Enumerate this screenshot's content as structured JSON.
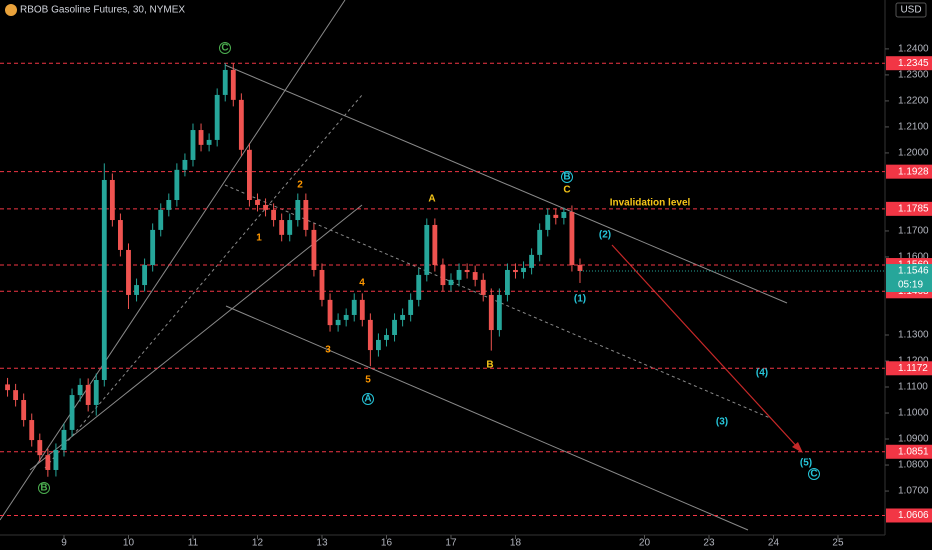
{
  "chart_data": {
    "type": "candlestick",
    "title": "RBOB Gasoline Futures, 30, NYMEX",
    "currency": "USD",
    "up_color": "#26a69a",
    "down_color": "#ef5350",
    "level_color": "#f23645",
    "grid": false,
    "xlim": [
      -0.992,
      12.729
    ],
    "xticks": [
      {
        "value": 0,
        "label": "9"
      },
      {
        "value": 1,
        "label": "10"
      },
      {
        "value": 2,
        "label": "11"
      },
      {
        "value": 3,
        "label": "12"
      },
      {
        "value": 4,
        "label": "13"
      },
      {
        "value": 5,
        "label": "16"
      },
      {
        "value": 6,
        "label": "17"
      },
      {
        "value": 7,
        "label": "18"
      },
      {
        "value": 9,
        "label": "20"
      },
      {
        "value": 10,
        "label": "23"
      },
      {
        "value": 11,
        "label": "24"
      },
      {
        "value": 12,
        "label": "25"
      }
    ],
    "ylim": [
      1.0531,
      1.2588
    ],
    "yticks": [
      {
        "value": 1.24,
        "label": "1.2400"
      },
      {
        "value": 1.23,
        "label": "1.2300"
      },
      {
        "value": 1.22,
        "label": "1.2200"
      },
      {
        "value": 1.21,
        "label": "1.2100"
      },
      {
        "value": 1.2,
        "label": "1.2000"
      },
      {
        "value": 1.17,
        "label": "1.1700"
      },
      {
        "value": 1.16,
        "label": "1.1600"
      },
      {
        "value": 1.13,
        "label": "1.1300"
      },
      {
        "value": 1.12,
        "label": "1.1200"
      },
      {
        "value": 1.11,
        "label": "1.1100"
      },
      {
        "value": 1.1,
        "label": "1.1000"
      },
      {
        "value": 1.09,
        "label": "1.0900"
      },
      {
        "value": 1.08,
        "label": "1.0800"
      },
      {
        "value": 1.07,
        "label": "1.0700"
      }
    ],
    "x": [
      -0.875,
      -0.75,
      -0.625,
      -0.5,
      -0.375,
      -0.25,
      -0.125,
      0,
      0.125,
      0.25,
      0.375,
      0.5,
      0.625,
      0.75,
      0.875,
      1,
      1.125,
      1.25,
      1.375,
      1.5,
      1.625,
      1.75,
      1.875,
      2,
      2.125,
      2.25,
      2.375,
      2.5,
      2.625,
      2.75,
      2.875,
      3,
      3.125,
      3.25,
      3.375,
      3.5,
      3.625,
      3.75,
      3.875,
      4,
      4.125,
      4.25,
      4.375,
      4.5,
      4.625,
      4.75,
      4.875,
      5,
      5.125,
      5.25,
      5.375,
      5.5,
      5.625,
      5.75,
      5.875,
      6,
      6.125,
      6.25,
      6.375,
      6.5,
      6.625,
      6.75,
      6.875,
      7,
      7.125,
      7.25,
      7.375,
      7.5,
      7.625,
      7.75,
      7.875,
      8
    ],
    "open": [
      1.111,
      1.1088,
      1.105,
      1.0973,
      1.0896,
      1.0838,
      1.0781,
      1.0858,
      1.0935,
      1.1069,
      1.1108,
      1.1031,
      1.1127,
      1.1896,
      1.1742,
      1.1627,
      1.1454,
      1.1492,
      1.1569,
      1.1704,
      1.1781,
      1.1819,
      1.1935,
      1.1973,
      1.2088,
      1.2031,
      1.205,
      1.2223,
      1.2319,
      1.2204,
      1.2012,
      1.1819,
      1.18,
      1.1781,
      1.1742,
      1.1685,
      1.1742,
      1.1819,
      1.1704,
      1.155,
      1.1435,
      1.1338,
      1.1358,
      1.1377,
      1.1435,
      1.1358,
      1.1242,
      1.1281,
      1.13,
      1.1358,
      1.1377,
      1.1435,
      1.1531,
      1.1723,
      1.1569,
      1.1492,
      1.1512,
      1.155,
      1.1542,
      1.1512,
      1.1454,
      1.1319,
      1.1454,
      1.155,
      1.1542,
      1.1558,
      1.1608,
      1.1704,
      1.1762,
      1.175,
      1.1773,
      1.1569
    ],
    "high": [
      1.1135,
      1.1112,
      1.1075,
      1.0998,
      1.0921,
      1.0863,
      1.0883,
      1.096,
      1.1094,
      1.1133,
      1.1133,
      1.1152,
      1.196,
      1.1921,
      1.1767,
      1.1652,
      1.1517,
      1.1594,
      1.1729,
      1.1806,
      1.1844,
      1.196,
      1.1998,
      1.2113,
      1.2113,
      1.2075,
      1.2248,
      1.2345,
      1.2344,
      1.2229,
      1.2037,
      1.1844,
      1.1825,
      1.1806,
      1.1767,
      1.1767,
      1.1844,
      1.1844,
      1.1729,
      1.1575,
      1.146,
      1.1383,
      1.1402,
      1.146,
      1.146,
      1.1383,
      1.1306,
      1.1325,
      1.1383,
      1.1402,
      1.146,
      1.1556,
      1.1748,
      1.1748,
      1.1594,
      1.1537,
      1.1575,
      1.1575,
      1.1567,
      1.1537,
      1.1479,
      1.1479,
      1.1575,
      1.1575,
      1.1583,
      1.1633,
      1.1729,
      1.1787,
      1.1787,
      1.179,
      1.1798,
      1.1594
    ],
    "low": [
      1.1063,
      1.1025,
      1.0948,
      1.0871,
      1.0813,
      1.0755,
      1.0756,
      1.0833,
      1.091,
      1.1044,
      1.1006,
      1.099,
      1.1102,
      1.1717,
      1.1602,
      1.14,
      1.1429,
      1.1467,
      1.1544,
      1.1679,
      1.1756,
      1.1794,
      1.191,
      1.1948,
      1.2006,
      1.2006,
      1.2025,
      1.2198,
      1.2179,
      1.1987,
      1.1794,
      1.1775,
      1.1756,
      1.1717,
      1.166,
      1.166,
      1.1717,
      1.1679,
      1.1525,
      1.141,
      1.1313,
      1.1313,
      1.1333,
      1.1352,
      1.1333,
      1.118,
      1.1217,
      1.1256,
      1.1275,
      1.1333,
      1.1352,
      1.141,
      1.1506,
      1.1544,
      1.1467,
      1.1467,
      1.1487,
      1.1517,
      1.1487,
      1.1429,
      1.124,
      1.1294,
      1.1429,
      1.1517,
      1.1517,
      1.1533,
      1.1583,
      1.1679,
      1.1725,
      1.1725,
      1.1544,
      1.15
    ],
    "close": [
      1.1088,
      1.105,
      1.0973,
      1.0896,
      1.0838,
      1.0781,
      1.0858,
      1.0935,
      1.1069,
      1.1108,
      1.1031,
      1.1127,
      1.1896,
      1.1742,
      1.1627,
      1.1454,
      1.1492,
      1.1569,
      1.1704,
      1.1781,
      1.1819,
      1.1935,
      1.1973,
      1.2088,
      1.2031,
      1.205,
      1.2223,
      1.2319,
      1.2204,
      1.2012,
      1.1819,
      1.18,
      1.1781,
      1.1742,
      1.1685,
      1.1742,
      1.1819,
      1.1704,
      1.155,
      1.1435,
      1.1338,
      1.1358,
      1.1377,
      1.1435,
      1.1358,
      1.1242,
      1.1281,
      1.13,
      1.1358,
      1.1377,
      1.1435,
      1.1531,
      1.1723,
      1.1569,
      1.1492,
      1.1512,
      1.155,
      1.1542,
      1.1512,
      1.1454,
      1.1319,
      1.1454,
      1.155,
      1.1542,
      1.1558,
      1.1608,
      1.1704,
      1.1762,
      1.175,
      1.1773,
      1.1569,
      1.1546
    ],
    "levels": [
      {
        "value": 1.2345,
        "label": "1.2345"
      },
      {
        "value": 1.1928,
        "label": "1.1928"
      },
      {
        "value": 1.1785,
        "label": "1.1785"
      },
      {
        "value": 1.1569,
        "label": "1.1569"
      },
      {
        "value": 1.1468,
        "label": "1.1468"
      },
      {
        "value": 1.1172,
        "label": "1.1172"
      },
      {
        "value": 1.0851,
        "label": "1.0851"
      },
      {
        "value": 1.0606,
        "label": "1.0606"
      }
    ],
    "last_price": {
      "value": 1.1546,
      "label": "1.1546",
      "countdown": "05:19"
    },
    "annotations": [
      "C",
      "B",
      "A",
      "B",
      "C",
      "1",
      "2",
      "3",
      "4",
      "5",
      "A",
      "B",
      "C",
      "(1)",
      "(2)",
      "(3)",
      "(4)",
      "(5)",
      "Invalidation level"
    ]
  }
}
